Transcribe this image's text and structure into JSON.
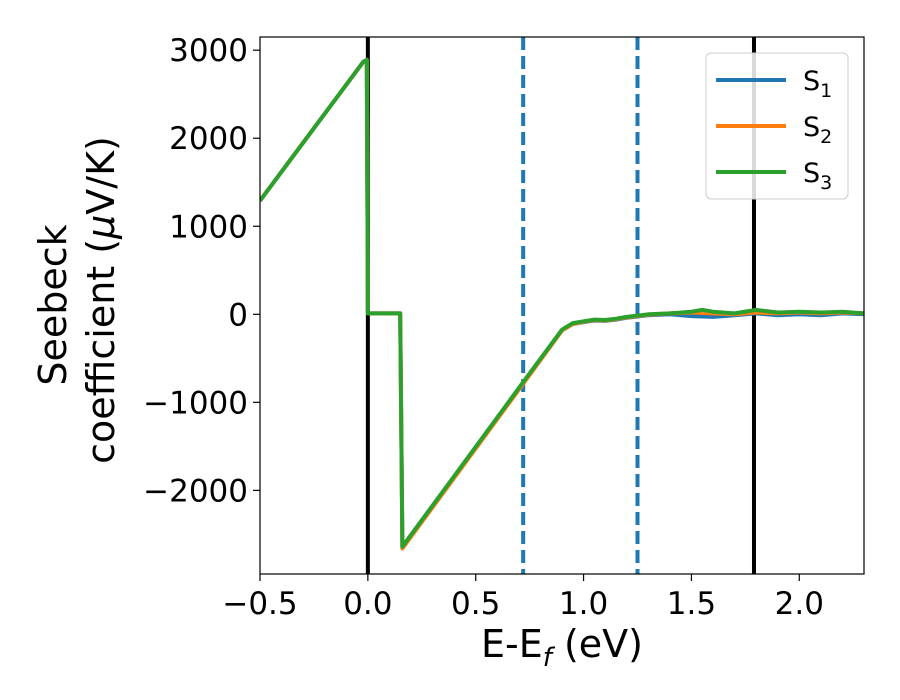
{
  "chart_data": {
    "type": "line",
    "title": "",
    "xlabel": "E-E",
    "xlabel_sub": "f",
    "xlabel_unit": " (eV)",
    "ylabel_line1": "Seebeck",
    "ylabel_line2": "coefficient  (",
    "ylabel_mu": "μ",
    "ylabel_unit": "V/K)",
    "xlim": [
      -0.5,
      2.3
    ],
    "ylim": [
      -2950,
      3150
    ],
    "xticks": [
      -0.5,
      0.0,
      0.5,
      1.0,
      1.5,
      2.0
    ],
    "xtick_labels": [
      "−0.5",
      "0.0",
      "0.5",
      "1.0",
      "1.5",
      "2.0"
    ],
    "yticks": [
      -2000,
      -1000,
      0,
      1000,
      2000,
      3000
    ],
    "ytick_labels": [
      "−2000",
      "−1000",
      "0",
      "1000",
      "2000",
      "3000"
    ],
    "grid": false,
    "legend_position": "top-right",
    "vlines": [
      {
        "x": 0.0,
        "style": "solid",
        "color": "#000000"
      },
      {
        "x": 1.79,
        "style": "solid",
        "color": "#000000"
      },
      {
        "x": 0.72,
        "style": "dashed",
        "color": "#1f77b4"
      },
      {
        "x": 1.25,
        "style": "dashed",
        "color": "#1f77b4"
      }
    ],
    "series": [
      {
        "name": "S",
        "sub": "1",
        "color": "#1f77b4",
        "points": [
          [
            -0.5,
            1290
          ],
          [
            -0.02,
            2870
          ],
          [
            -0.005,
            2890
          ],
          [
            0.0,
            10
          ],
          [
            0.15,
            10
          ],
          [
            0.16,
            -2640
          ],
          [
            0.72,
            -780
          ],
          [
            0.9,
            -180
          ],
          [
            0.95,
            -110
          ],
          [
            1.0,
            -90
          ],
          [
            1.05,
            -70
          ],
          [
            1.1,
            -75
          ],
          [
            1.15,
            -60
          ],
          [
            1.2,
            -40
          ],
          [
            1.3,
            -10
          ],
          [
            1.4,
            0
          ],
          [
            1.5,
            -20
          ],
          [
            1.6,
            -30
          ],
          [
            1.7,
            -10
          ],
          [
            1.8,
            10
          ],
          [
            1.9,
            -10
          ],
          [
            2.0,
            0
          ],
          [
            2.1,
            -10
          ],
          [
            2.2,
            10
          ],
          [
            2.3,
            0
          ]
        ]
      },
      {
        "name": "S",
        "sub": "2",
        "color": "#ff7f0e",
        "points": [
          [
            -0.5,
            1290
          ],
          [
            -0.02,
            2870
          ],
          [
            -0.005,
            2890
          ],
          [
            0.0,
            10
          ],
          [
            0.15,
            10
          ],
          [
            0.16,
            -2660
          ],
          [
            0.72,
            -790
          ],
          [
            0.9,
            -185
          ],
          [
            0.95,
            -110
          ],
          [
            1.0,
            -85
          ],
          [
            1.05,
            -65
          ],
          [
            1.1,
            -70
          ],
          [
            1.15,
            -55
          ],
          [
            1.2,
            -35
          ],
          [
            1.3,
            -5
          ],
          [
            1.4,
            10
          ],
          [
            1.5,
            20
          ],
          [
            1.6,
            10
          ],
          [
            1.7,
            0
          ],
          [
            1.8,
            20
          ],
          [
            1.9,
            10
          ],
          [
            2.0,
            20
          ],
          [
            2.1,
            10
          ],
          [
            2.2,
            20
          ],
          [
            2.3,
            10
          ]
        ]
      },
      {
        "name": "S",
        "sub": "3",
        "color": "#2ca02c",
        "points": [
          [
            -0.5,
            1290
          ],
          [
            -0.02,
            2870
          ],
          [
            -0.005,
            2890
          ],
          [
            0.0,
            10
          ],
          [
            0.15,
            10
          ],
          [
            0.16,
            -2640
          ],
          [
            0.72,
            -770
          ],
          [
            0.9,
            -175
          ],
          [
            0.95,
            -100
          ],
          [
            1.0,
            -80
          ],
          [
            1.05,
            -60
          ],
          [
            1.1,
            -65
          ],
          [
            1.15,
            -50
          ],
          [
            1.2,
            -30
          ],
          [
            1.3,
            0
          ],
          [
            1.4,
            10
          ],
          [
            1.5,
            30
          ],
          [
            1.55,
            50
          ],
          [
            1.6,
            30
          ],
          [
            1.7,
            10
          ],
          [
            1.8,
            50
          ],
          [
            1.9,
            20
          ],
          [
            2.0,
            30
          ],
          [
            2.1,
            20
          ],
          [
            2.2,
            30
          ],
          [
            2.3,
            10
          ]
        ]
      }
    ]
  }
}
